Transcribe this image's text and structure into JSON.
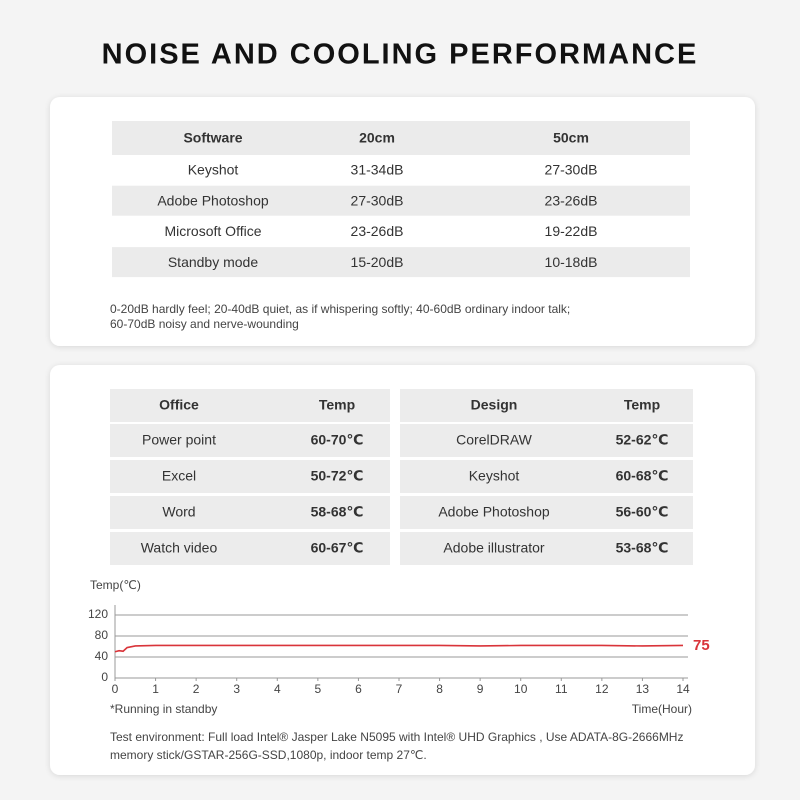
{
  "title": "NOISE AND COOLING PERFORMANCE",
  "noise_table": {
    "header": [
      "Software",
      "20cm",
      "50cm"
    ],
    "rows": [
      [
        "Keyshot",
        "31-34dB",
        "27-30dB"
      ],
      [
        "Adobe Photoshop",
        "27-30dB",
        "23-26dB"
      ],
      [
        "Microsoft Office",
        "23-26dB",
        "19-22dB"
      ],
      [
        "Standby mode",
        "15-20dB",
        "10-18dB"
      ]
    ],
    "note": [
      "0-20dB hardly feel; 20-40dB quiet, as if whispering softly; 40-60dB ordinary indoor talk;",
      "60-70dB noisy and nerve-wounding"
    ]
  },
  "office_table": {
    "header": [
      "Office",
      "Temp"
    ],
    "rows": [
      [
        "Power point",
        "60-70℃"
      ],
      [
        "Excel",
        "50-72℃"
      ],
      [
        "Word",
        "58-68℃"
      ],
      [
        "Watch video",
        "60-67℃"
      ]
    ]
  },
  "design_table": {
    "header": [
      "Design",
      "Temp"
    ],
    "rows": [
      [
        "CorelDRAW",
        "52-62℃"
      ],
      [
        "Keyshot",
        "60-68℃"
      ],
      [
        "Adobe Photoshop",
        "56-60℃"
      ],
      [
        "Adobe illustrator",
        "53-68℃"
      ]
    ]
  },
  "chart_data": {
    "type": "line",
    "y_label": "Temp(℃)",
    "x_label": "Time(Hour)",
    "annotation": "75",
    "note": "*Running in standby",
    "x": [
      0,
      0.1,
      0.2,
      0.3,
      0.5,
      1,
      2,
      3,
      4,
      5,
      6,
      7,
      8,
      9,
      10,
      11,
      12,
      13,
      14
    ],
    "values": [
      50,
      52,
      51,
      58,
      61,
      62,
      62,
      62,
      62,
      62,
      62,
      62,
      62,
      61,
      62,
      62,
      62,
      61,
      62
    ],
    "color": "#d9343a",
    "xlim": [
      0,
      14
    ],
    "xticks": [
      0,
      1,
      2,
      3,
      4,
      5,
      6,
      7,
      8,
      9,
      10,
      11,
      12,
      13,
      14
    ],
    "ylim": [
      0,
      120
    ],
    "yticks": [
      0,
      40,
      80,
      120
    ],
    "grid": true
  },
  "test_env": [
    "Test environment: Full load Intel® Jasper Lake N5095 with Intel® UHD Graphics ,  Use ADATA-8G-2666MHz",
    "memory stick/GSTAR-256G-SSD,1080p, indoor temp 27℃."
  ]
}
